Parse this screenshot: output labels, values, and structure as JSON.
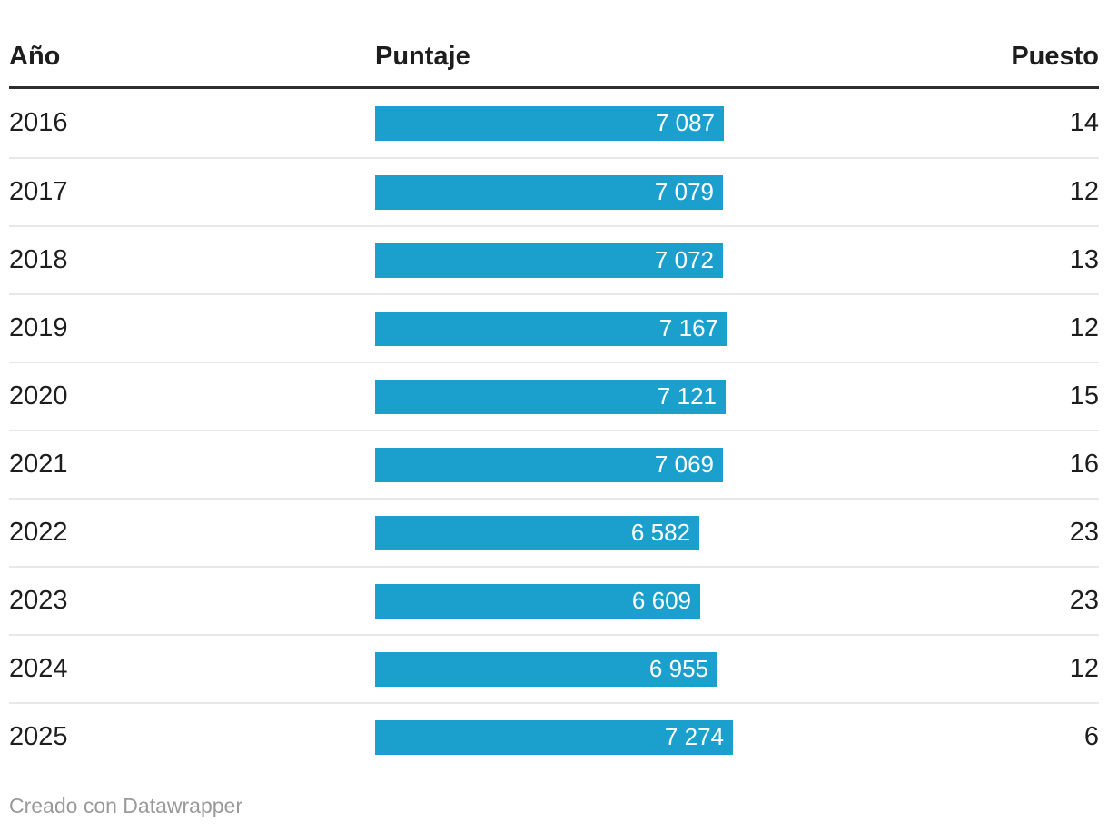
{
  "table": {
    "columns": {
      "year": "Año",
      "score": "Puntaje",
      "rank": "Puesto"
    },
    "rows": [
      {
        "year": "2016",
        "score": 7087,
        "score_label": "7 087",
        "rank": "14"
      },
      {
        "year": "2017",
        "score": 7079,
        "score_label": "7 079",
        "rank": "12"
      },
      {
        "year": "2018",
        "score": 7072,
        "score_label": "7 072",
        "rank": "13"
      },
      {
        "year": "2019",
        "score": 7167,
        "score_label": "7 167",
        "rank": "12"
      },
      {
        "year": "2020",
        "score": 7121,
        "score_label": "7 121",
        "rank": "15"
      },
      {
        "year": "2021",
        "score": 7069,
        "score_label": "7 069",
        "rank": "16"
      },
      {
        "year": "2022",
        "score": 6582,
        "score_label": "6 582",
        "rank": "23"
      },
      {
        "year": "2023",
        "score": 6609,
        "score_label": "6 609",
        "rank": "23"
      },
      {
        "year": "2024",
        "score": 6955,
        "score_label": "6 955",
        "rank": "12"
      },
      {
        "year": "2025",
        "score": 7274,
        "score_label": "7 274",
        "rank": "6"
      }
    ]
  },
  "footer": {
    "credit": "Creado con Datawrapper"
  },
  "colors": {
    "bar": "#1ba0ce",
    "bar_label": "#ffffff",
    "header_rule": "#2e2e2e",
    "row_separator": "#e8e8e8",
    "text": "#1d1d1d",
    "footer_text": "#9a9a9a"
  },
  "chart_data": {
    "type": "table",
    "title": "",
    "columns": [
      "Año",
      "Puntaje",
      "Puesto"
    ],
    "rows": [
      {
        "ano": 2016,
        "puntaje": 7087,
        "puesto": 14
      },
      {
        "ano": 2017,
        "puntaje": 7079,
        "puesto": 12
      },
      {
        "ano": 2018,
        "puntaje": 7072,
        "puesto": 13
      },
      {
        "ano": 2019,
        "puntaje": 7167,
        "puesto": 12
      },
      {
        "ano": 2020,
        "puntaje": 7121,
        "puesto": 15
      },
      {
        "ano": 2021,
        "puntaje": 7069,
        "puesto": 16
      },
      {
        "ano": 2022,
        "puntaje": 6582,
        "puesto": 23
      },
      {
        "ano": 2023,
        "puntaje": 6609,
        "puesto": 23
      },
      {
        "ano": 2024,
        "puntaje": 6955,
        "puesto": 12
      },
      {
        "ano": 2025,
        "puntaje": 7274,
        "puesto": 6
      }
    ],
    "bar_column": "Puntaje",
    "bar_axis_range": [
      0,
      7274
    ],
    "bar_color": "#1ba0ce",
    "value_label_position": "inside-right",
    "number_format": "space thousands separator",
    "grid": "horizontal row separators",
    "legend": "none",
    "attribution": "Creado con Datawrapper"
  }
}
